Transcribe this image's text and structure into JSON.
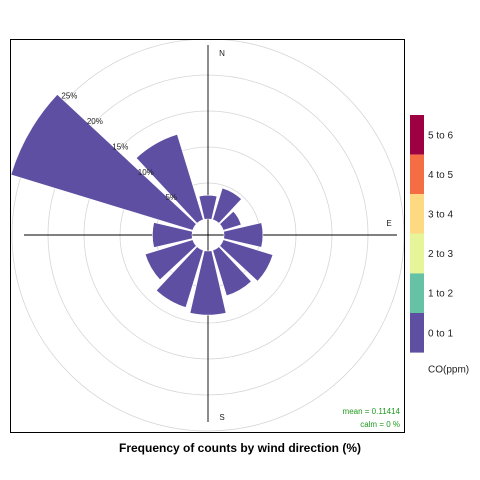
{
  "chart_data": {
    "type": "windrose",
    "caption": "Frequency of counts by wind direction (%)",
    "compass": {
      "north": "N",
      "east": "E",
      "south": "S"
    },
    "rings": [
      {
        "value": 5,
        "label": "5%"
      },
      {
        "value": 10,
        "label": "10%"
      },
      {
        "value": 15,
        "label": "15%"
      },
      {
        "value": 20,
        "label": "20%"
      },
      {
        "value": 25,
        "label": "25%"
      }
    ],
    "directions_deg": [
      0,
      30,
      60,
      90,
      120,
      150,
      180,
      210,
      240,
      270,
      300,
      330
    ],
    "frequency_percent": [
      3.3,
      4.6,
      2.6,
      5.4,
      7.2,
      6.6,
      8.9,
      8.3,
      6.9,
      5.5,
      26.4,
      12.4
    ],
    "series": [
      {
        "name": "0 to 1",
        "color": "#5e4fa2"
      }
    ],
    "legend": {
      "title": "CO(ppm)",
      "placement": "right",
      "items": [
        {
          "label": "5 to 6",
          "color": "#9e0142"
        },
        {
          "label": "4 to 5",
          "color": "#f46d43"
        },
        {
          "label": "3 to 4",
          "color": "#fdd982"
        },
        {
          "label": "2 to 3",
          "color": "#e6f598"
        },
        {
          "label": "1 to 2",
          "color": "#66c2a5"
        },
        {
          "label": "0 to 1",
          "color": "#5e4fa2"
        }
      ]
    },
    "stats": {
      "mean": "mean = 0.11414",
      "calm": "calm = 0 %"
    }
  }
}
